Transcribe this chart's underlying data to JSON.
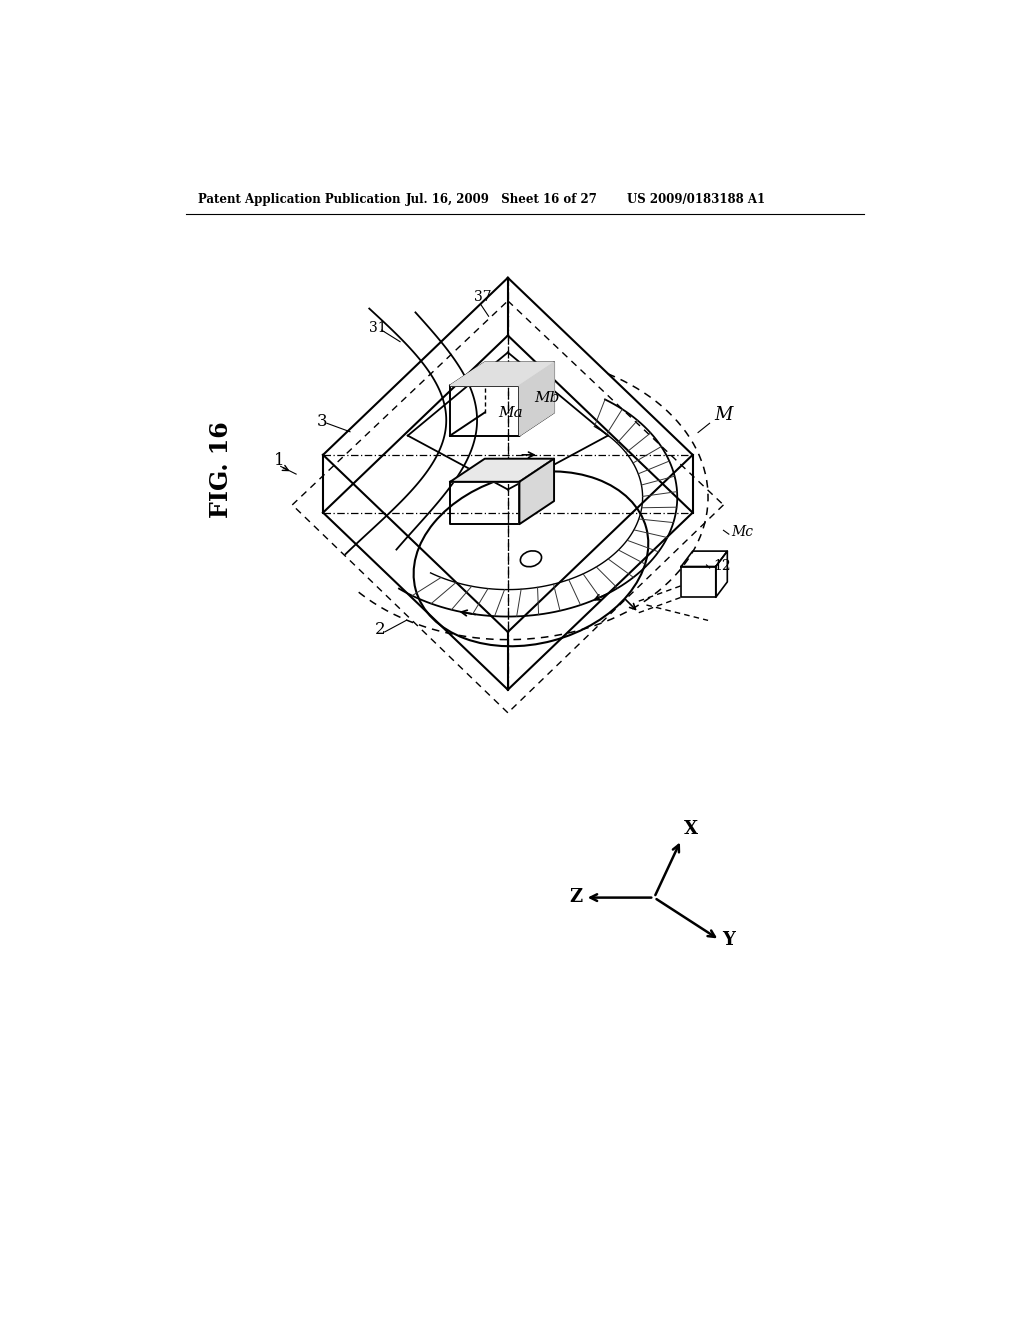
{
  "title_left": "Patent Application Publication",
  "title_mid": "Jul. 16, 2009   Sheet 16 of 27",
  "title_right": "US 2009/0183188 A1",
  "fig_label": "FIG. 16",
  "bg_color": "#ffffff",
  "line_color": "#000000"
}
